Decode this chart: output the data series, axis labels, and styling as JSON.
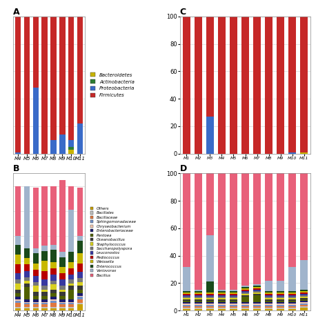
{
  "A_categories": [
    "M4",
    "M5",
    "M6",
    "M7",
    "M8",
    "M9",
    "M10",
    "M11"
  ],
  "A_data": {
    "Bacteroidetes": [
      0,
      0,
      0,
      0,
      0,
      0,
      3,
      0
    ],
    "Actinobacteria": [
      0,
      0,
      0,
      0,
      0,
      0,
      2,
      0
    ],
    "Proteobacteria": [
      1,
      0,
      48,
      0,
      10,
      14,
      5,
      22
    ],
    "Firmicutes": [
      99,
      100,
      52,
      100,
      90,
      86,
      90,
      78
    ]
  },
  "A_colors": [
    "#c8b400",
    "#2e7d32",
    "#3a6bc8",
    "#c62828"
  ],
  "A_legend": [
    "Bacteroidetes",
    "Actinobacteria",
    "Proteobacteria",
    "Firmicutes"
  ],
  "C_categories": [
    "M1",
    "M2",
    "M3",
    "M4",
    "M5",
    "M6",
    "M7",
    "M8",
    "M9",
    "M10",
    "M11"
  ],
  "C_data": {
    "Bacteroidetes": [
      0,
      0,
      0,
      0,
      0,
      0,
      0,
      0,
      0,
      0,
      1
    ],
    "Actinobacteria": [
      0,
      0,
      0,
      0,
      0,
      0,
      0,
      0,
      0,
      0,
      0
    ],
    "Proteobacteria": [
      0,
      0,
      27,
      0,
      0,
      0,
      0,
      0,
      0,
      1,
      0
    ],
    "Firmicutes": [
      100,
      100,
      73,
      100,
      100,
      100,
      100,
      100,
      100,
      99,
      99
    ]
  },
  "C_colors": [
    "#c8b400",
    "#2e7d32",
    "#3a6bc8",
    "#c62828"
  ],
  "B_categories": [
    "M4",
    "M5",
    "M6",
    "M7",
    "M8",
    "M9",
    "M10",
    "M11"
  ],
  "B_data": {
    "Others": [
      2,
      2,
      2,
      2,
      2,
      2,
      2,
      5
    ],
    "Bacillales": [
      1,
      1,
      1,
      1,
      1,
      1,
      1,
      1
    ],
    "Bacillaceae": [
      3,
      2,
      2,
      2,
      3,
      2,
      2,
      3
    ],
    "Sphingomonadaceae": [
      2,
      1,
      1,
      1,
      2,
      1,
      1,
      2
    ],
    "Chryseobacterium": [
      1,
      1,
      1,
      1,
      1,
      1,
      1,
      1
    ],
    "Enterobacteriaceae": [
      2,
      2,
      2,
      2,
      2,
      2,
      2,
      2
    ],
    "Pantoea": [
      3,
      10,
      3,
      3,
      3,
      3,
      8,
      3
    ],
    "Oceanobacillus": [
      3,
      3,
      3,
      3,
      3,
      3,
      3,
      3
    ],
    "Staphylococcus": [
      5,
      2,
      5,
      2,
      4,
      2,
      2,
      3
    ],
    "Saccharopolyspora": [
      3,
      3,
      3,
      3,
      3,
      3,
      3,
      3
    ],
    "Leuconostoc": [
      5,
      5,
      5,
      5,
      5,
      5,
      4,
      5
    ],
    "Pediococcus": [
      7,
      5,
      5,
      7,
      5,
      5,
      5,
      7
    ],
    "Weissella": [
      8,
      5,
      5,
      8,
      5,
      5,
      5,
      8
    ],
    "Enterococcus": [
      8,
      8,
      8,
      8,
      10,
      8,
      8,
      10
    ],
    "Variovorax": [
      7,
      50,
      4,
      4,
      4,
      4,
      34,
      4
    ],
    "Bacillus": [
      40,
      0,
      49,
      48,
      47,
      58,
      19,
      39
    ]
  },
  "B_colors": [
    "#c8a000",
    "#c0c0c0",
    "#e07840",
    "#7090c8",
    "#f5c8b0",
    "#1a1a70",
    "#506000",
    "#383838",
    "#d8d020",
    "#787878",
    "#3838a0",
    "#b80000",
    "#c8b800",
    "#1a4a1a",
    "#a0b4cc",
    "#e8607a"
  ],
  "D_categories": [
    "M1",
    "M2",
    "M3",
    "M4",
    "M5",
    "M6",
    "M7",
    "M8",
    "M9",
    "M10",
    "M11"
  ],
  "D_data": {
    "Others": [
      1,
      1,
      1,
      1,
      1,
      1,
      1,
      1,
      1,
      1,
      2
    ],
    "Bacillales": [
      1,
      1,
      1,
      1,
      1,
      1,
      1,
      1,
      1,
      1,
      1
    ],
    "Bacillaceae": [
      1,
      1,
      1,
      1,
      1,
      1,
      1,
      1,
      1,
      1,
      1
    ],
    "Sphingomonadaceae": [
      1,
      1,
      1,
      1,
      1,
      1,
      1,
      1,
      1,
      1,
      1
    ],
    "Chryseobacterium": [
      1,
      1,
      1,
      1,
      1,
      1,
      1,
      1,
      1,
      1,
      1
    ],
    "Enterobacteriaceae": [
      1,
      1,
      1,
      1,
      1,
      1,
      1,
      1,
      1,
      1,
      1
    ],
    "Pantoea": [
      1,
      1,
      1,
      1,
      1,
      4,
      5,
      1,
      1,
      1,
      1
    ],
    "Oceanobacillus": [
      1,
      1,
      1,
      1,
      1,
      1,
      1,
      1,
      1,
      1,
      1
    ],
    "Staphylococcus": [
      1,
      1,
      1,
      1,
      1,
      1,
      1,
      1,
      1,
      1,
      1
    ],
    "Saccharopolyspora": [
      1,
      1,
      1,
      1,
      1,
      1,
      1,
      1,
      1,
      1,
      1
    ],
    "Leuconostoc": [
      1,
      1,
      1,
      1,
      1,
      1,
      1,
      1,
      1,
      1,
      1
    ],
    "Pediococcus": [
      1,
      1,
      1,
      1,
      1,
      1,
      1,
      1,
      1,
      1,
      1
    ],
    "Weissella": [
      1,
      1,
      1,
      1,
      1,
      1,
      1,
      1,
      1,
      1,
      1
    ],
    "Enterococcus": [
      1,
      1,
      8,
      1,
      1,
      1,
      1,
      1,
      1,
      1,
      1
    ],
    "Variovorax": [
      18,
      1,
      34,
      1,
      1,
      1,
      1,
      8,
      8,
      18,
      22
    ],
    "Bacillus": [
      68,
      88,
      48,
      88,
      88,
      85,
      83,
      80,
      82,
      72,
      63
    ]
  },
  "D_colors": [
    "#c8a000",
    "#c0c0c0",
    "#e07840",
    "#7090c8",
    "#f5c8b0",
    "#1a1a70",
    "#506000",
    "#383838",
    "#d8d020",
    "#787878",
    "#3838a0",
    "#b80000",
    "#c8b800",
    "#1a4a1a",
    "#a0b4cc",
    "#e8607a"
  ],
  "B_legend": [
    "Others",
    "Bacillales",
    "Bacillaceae",
    "Sphingomonadaceae",
    "Chryseobacterium",
    "Enterobacteriaceae",
    "Pantoea",
    "Oceanobacillus",
    "Staphylococcus",
    "Saccharopolyspora",
    "Leuconostoc",
    "Pediococcus",
    "Weissella",
    "Enterococcus",
    "Variovorax",
    "Bacillus"
  ],
  "bg_color": "#ffffff",
  "grid_color": "#d8d8d8"
}
